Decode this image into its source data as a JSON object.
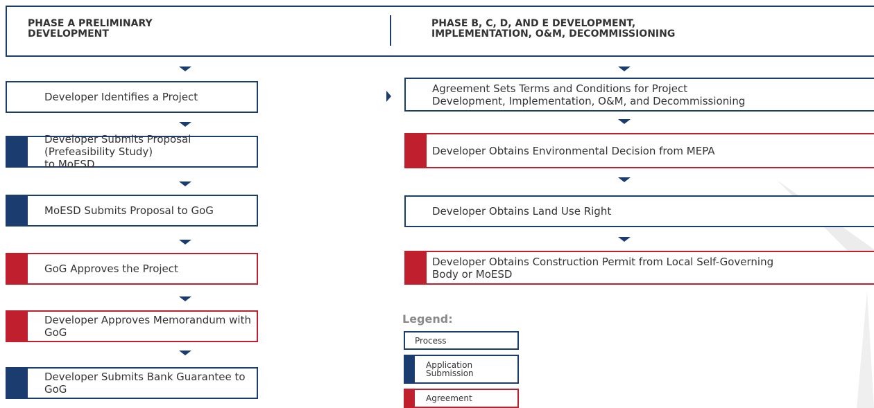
{
  "header": {
    "left": [
      "PHASE A PRELIMINARY",
      "DEVELOPMENT"
    ],
    "right": [
      "PHASE B, C, D, AND E DEVELOPMENT,",
      "IMPLEMENTATION, O&M, DECOMMISSIONING"
    ]
  },
  "left_steps": [
    [
      "Developer Identifies a Project"
    ],
    [
      "Developer Submits Proposal (Prefeasibility Study)",
      "to MoESD"
    ],
    [
      "MoESD Submits Proposal to GoG"
    ],
    [
      "GoG Approves the Project"
    ],
    [
      "Developer Approves Memorandum with GoG"
    ],
    [
      "Developer Submits Bank  Guarantee to GoG"
    ]
  ],
  "right_steps": [
    [
      "Agreement Sets Terms and Conditions for Project",
      "Development, Implementation, O&M, and  Decommissioning"
    ],
    [
      "Developer Obtains Environmental Decision from MEPA"
    ],
    [
      "Developer Obtains Land Use Right"
    ],
    [
      "Developer Obtains Construction Permit  from Local Self-Governing",
      "Body or MoESD"
    ]
  ],
  "legend": {
    "title": "Legend:",
    "items": [
      [
        "Process"
      ],
      [
        "Application",
        "Submission"
      ],
      [
        "Agreement"
      ]
    ]
  }
}
